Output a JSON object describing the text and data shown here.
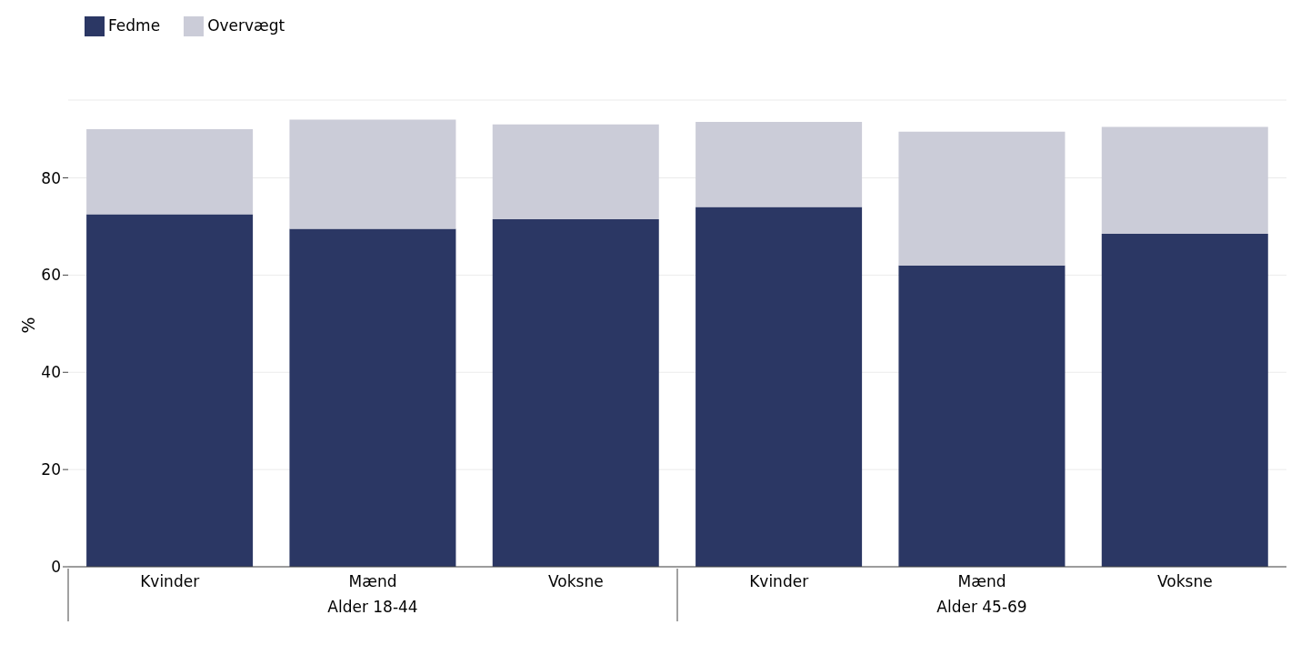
{
  "chart_data": {
    "type": "bar",
    "stacked": true,
    "ylabel": "%",
    "categories": [
      "Kvinder",
      "Mænd",
      "Voksne",
      "Kvinder",
      "Mænd",
      "Voksne"
    ],
    "series": [
      {
        "name": "Fedme",
        "color": "#2b3764",
        "values": [
          72.5,
          69.5,
          71.5,
          74,
          62,
          68.5
        ]
      },
      {
        "name": "Overvægt",
        "color": "#cbccd8",
        "values": [
          17.5,
          22.5,
          19.5,
          17.5,
          27.5,
          22
        ]
      }
    ],
    "annotations": [
      "Alder 18-44",
      "Alder 45-69"
    ],
    "ylim": [
      0,
      96
    ],
    "yticks": [
      0,
      20,
      40,
      60,
      80
    ],
    "grid": "y",
    "legend": "top left"
  }
}
